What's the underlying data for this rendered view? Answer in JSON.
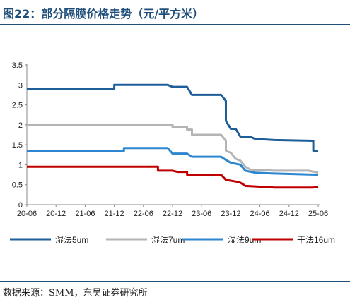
{
  "title": "图22：部分隔膜价格走势（元/平方米）",
  "source": "数据来源：SMM，东吴证券研究所",
  "chart_data": {
    "type": "line",
    "title": "",
    "xlabel": "",
    "ylabel": "",
    "ylim": [
      0,
      3.5
    ],
    "yticks": [
      "0",
      "0.5",
      "1",
      "1.5",
      "2",
      "2.5",
      "3",
      "3.5"
    ],
    "xticks": [
      "20-06",
      "20-12",
      "21-06",
      "21-12",
      "22-06",
      "22-12",
      "23-06",
      "23-12",
      "24-06",
      "24-12",
      "25-06"
    ],
    "legend": "bottom",
    "grid": false,
    "series": [
      {
        "name": "湿法5um",
        "color": "#1F5F99",
        "points": [
          [
            "2020-06",
            2.9
          ],
          [
            "2021-12",
            2.9
          ],
          [
            "2021-12",
            3.0
          ],
          [
            "2022-11",
            3.0
          ],
          [
            "2022-12",
            2.95
          ],
          [
            "2023-03",
            2.95
          ],
          [
            "2023-04",
            2.75
          ],
          [
            "2023-10",
            2.75
          ],
          [
            "2023-11",
            2.6
          ],
          [
            "2023-11",
            2.1
          ],
          [
            "2023-12",
            1.9
          ],
          [
            "2024-01",
            1.9
          ],
          [
            "2024-02",
            1.7
          ],
          [
            "2024-04",
            1.7
          ],
          [
            "2024-05",
            1.65
          ],
          [
            "2024-09",
            1.62
          ],
          [
            "2025-05",
            1.6
          ],
          [
            "2025-05",
            1.35
          ],
          [
            "2025-06",
            1.35
          ]
        ]
      },
      {
        "name": "湿法7um",
        "color": "#B4B4B4",
        "points": [
          [
            "2020-06",
            2.0
          ],
          [
            "2022-12",
            2.0
          ],
          [
            "2022-12",
            1.95
          ],
          [
            "2023-03",
            1.95
          ],
          [
            "2023-03",
            1.88
          ],
          [
            "2023-04",
            1.88
          ],
          [
            "2023-04",
            1.75
          ],
          [
            "2023-10",
            1.75
          ],
          [
            "2023-11",
            1.6
          ],
          [
            "2023-11",
            1.35
          ],
          [
            "2023-12",
            1.3
          ],
          [
            "2024-01",
            1.15
          ],
          [
            "2024-02",
            1.1
          ],
          [
            "2024-03",
            0.95
          ],
          [
            "2024-04",
            0.88
          ],
          [
            "2024-09",
            0.85
          ],
          [
            "2025-04",
            0.85
          ],
          [
            "2025-06",
            0.8
          ]
        ]
      },
      {
        "name": "湿法9um",
        "color": "#2E86D0",
        "points": [
          [
            "2020-06",
            1.35
          ],
          [
            "2022-02",
            1.35
          ],
          [
            "2022-02",
            1.42
          ],
          [
            "2022-11",
            1.42
          ],
          [
            "2022-12",
            1.28
          ],
          [
            "2023-03",
            1.28
          ],
          [
            "2023-04",
            1.2
          ],
          [
            "2023-10",
            1.2
          ],
          [
            "2023-11",
            1.12
          ],
          [
            "2023-12",
            1.05
          ],
          [
            "2024-02",
            1.0
          ],
          [
            "2024-03",
            0.85
          ],
          [
            "2024-05",
            0.8
          ],
          [
            "2024-09",
            0.78
          ],
          [
            "2025-06",
            0.75
          ]
        ]
      },
      {
        "name": "干法16um",
        "color": "#C00000",
        "points": [
          [
            "2020-06",
            0.95
          ],
          [
            "2022-09",
            0.95
          ],
          [
            "2022-09",
            0.85
          ],
          [
            "2022-12",
            0.85
          ],
          [
            "2023-01",
            0.82
          ],
          [
            "2023-03",
            0.82
          ],
          [
            "2023-03",
            0.75
          ],
          [
            "2023-10",
            0.75
          ],
          [
            "2023-11",
            0.62
          ],
          [
            "2024-01",
            0.58
          ],
          [
            "2024-02",
            0.55
          ],
          [
            "2024-03",
            0.47
          ],
          [
            "2024-06",
            0.45
          ],
          [
            "2024-09",
            0.43
          ],
          [
            "2025-05",
            0.43
          ],
          [
            "2025-06",
            0.45
          ]
        ]
      }
    ]
  }
}
